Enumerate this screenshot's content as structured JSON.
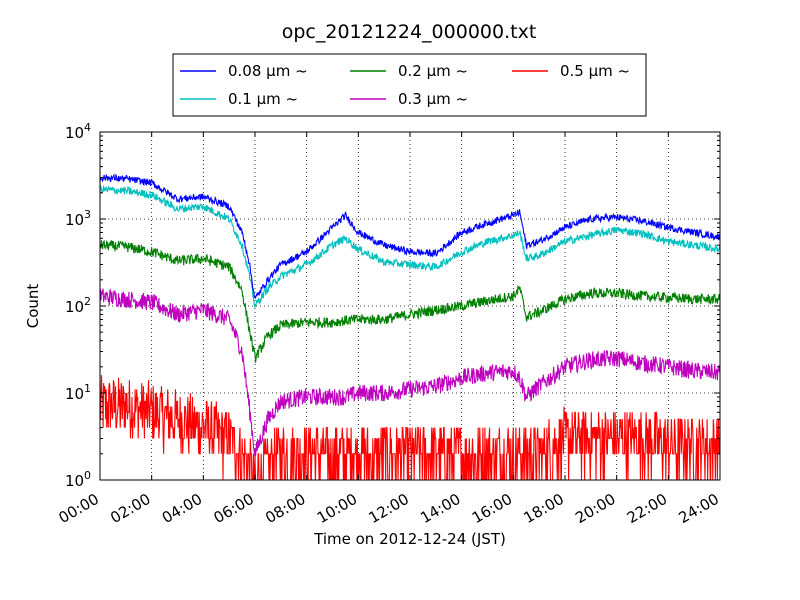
{
  "chart_data": {
    "type": "line",
    "title": "opc_20121224_000000.txt",
    "xlabel": "Time on 2012-12-24 (JST)",
    "ylabel": "Count",
    "yscale": "log",
    "ylim": [
      1,
      10000
    ],
    "xlim": [
      "00:00",
      "24:00"
    ],
    "x_ticks": [
      "00:00",
      "02:00",
      "04:00",
      "06:00",
      "08:00",
      "10:00",
      "12:00",
      "14:00",
      "16:00",
      "18:00",
      "20:00",
      "22:00",
      "24:00"
    ],
    "y_ticks": [
      {
        "base": "10",
        "exp": "0",
        "value": 1
      },
      {
        "base": "10",
        "exp": "1",
        "value": 10
      },
      {
        "base": "10",
        "exp": "2",
        "value": 100
      },
      {
        "base": "10",
        "exp": "3",
        "value": 1000
      },
      {
        "base": "10",
        "exp": "4",
        "value": 10000
      }
    ],
    "grid": true,
    "legend": {
      "placement": "top-center, above plot",
      "columns": 3
    },
    "x": [
      "00:00",
      "01:00",
      "02:00",
      "03:00",
      "04:00",
      "05:00",
      "05:30",
      "05:45",
      "06:00",
      "06:30",
      "07:00",
      "08:00",
      "09:00",
      "09:30",
      "10:00",
      "11:00",
      "12:00",
      "13:00",
      "14:00",
      "15:00",
      "16:00",
      "16:15",
      "16:30",
      "17:00",
      "18:00",
      "19:00",
      "20:00",
      "21:00",
      "22:00",
      "23:00",
      "24:00"
    ],
    "series": [
      {
        "name": "0.08 μm ~",
        "color": "#0000ff",
        "values": [
          3000,
          2900,
          2600,
          1700,
          1800,
          1400,
          700,
          350,
          120,
          200,
          300,
          420,
          800,
          1100,
          700,
          500,
          420,
          400,
          700,
          900,
          1100,
          1200,
          500,
          550,
          800,
          1000,
          1050,
          950,
          800,
          700,
          620
        ]
      },
      {
        "name": "0.1 μm ~",
        "color": "#00bfbf",
        "values": [
          2200,
          2100,
          1900,
          1300,
          1400,
          1000,
          500,
          250,
          100,
          160,
          220,
          300,
          500,
          600,
          450,
          320,
          300,
          280,
          420,
          550,
          650,
          700,
          350,
          380,
          550,
          650,
          750,
          680,
          550,
          500,
          450
        ]
      },
      {
        "name": "0.2 μm ~",
        "color": "#008000",
        "values": [
          500,
          480,
          420,
          330,
          350,
          280,
          150,
          60,
          25,
          45,
          60,
          65,
          65,
          68,
          70,
          70,
          80,
          90,
          100,
          115,
          130,
          160,
          75,
          85,
          120,
          140,
          140,
          130,
          125,
          120,
          120
        ]
      },
      {
        "name": "0.3 μm ~",
        "color": "#bf00bf",
        "values": [
          130,
          120,
          110,
          80,
          90,
          70,
          30,
          8,
          2,
          5,
          8,
          9,
          9,
          9,
          10,
          10,
          11,
          12,
          15,
          17,
          18,
          15,
          9,
          12,
          20,
          24,
          25,
          22,
          20,
          18,
          17
        ]
      },
      {
        "name": "0.5 μm ~",
        "color": "#ff0000",
        "values": [
          7,
          7,
          6,
          5,
          4,
          3,
          2,
          1.5,
          1,
          1.5,
          2,
          2,
          2,
          2,
          2,
          2,
          2,
          2,
          2,
          2,
          2,
          2,
          2,
          2,
          3,
          3,
          3,
          3,
          2.5,
          2.5,
          2.5
        ]
      }
    ]
  }
}
